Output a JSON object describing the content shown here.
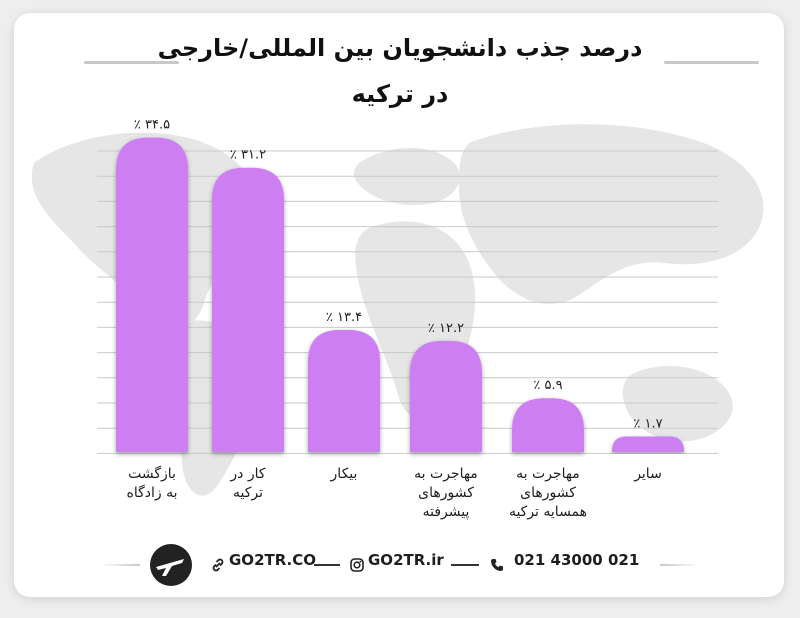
{
  "title_lines": [
    "درصد جذب  دانشجویان بین المللی/خارجی",
    "در ترکیه"
  ],
  "colors": {
    "bar": "#cd7ff2",
    "grid": "#c9c9c9",
    "text": "#1e1e1e"
  },
  "chart_data": {
    "type": "bar",
    "title": "درصد جذب  دانشجویان بین المللی/خارجی در ترکیه",
    "categories": [
      [
        "بازگشت",
        "به زادگاه"
      ],
      [
        "کار در",
        "ترکیه"
      ],
      [
        "بیکار"
      ],
      [
        "مهاجرت به",
        "کشورهای",
        "پیشرفته"
      ],
      [
        "مهاجرت به",
        "کشورهای",
        "همسایه ترکیه"
      ],
      [
        "سایر"
      ]
    ],
    "values": [
      34.5,
      31.2,
      13.4,
      12.2,
      5.9,
      1.7
    ],
    "value_labels": [
      "٪ ۳۴.۵",
      "٪ ۳۱.۲",
      "٪ ۱۳.۴",
      "٪ ۱۲.۲",
      "٪ ۵.۹",
      "٪ ۱.۷"
    ],
    "ylim": [
      0,
      36
    ],
    "grid": true
  },
  "footer": {
    "website": "GO2TR.CO",
    "instagram": "GO2TR.ir",
    "phone": "021 43000 021",
    "icons": [
      "logo-icon",
      "link-icon",
      "instagram-icon",
      "phone-icon"
    ]
  }
}
